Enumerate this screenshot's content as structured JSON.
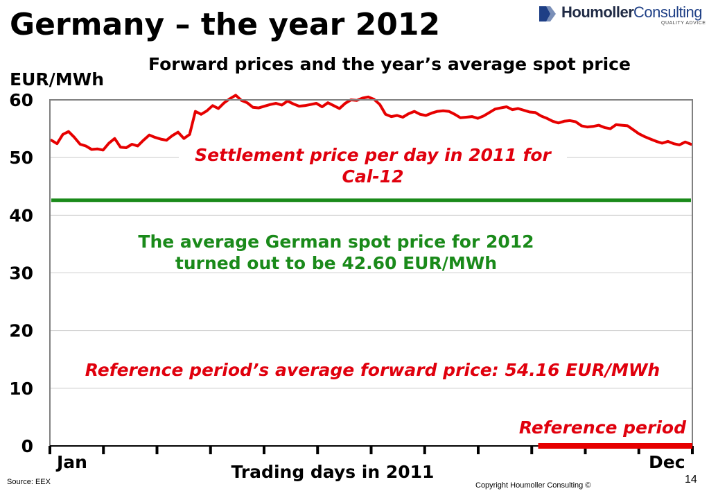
{
  "slide": {
    "title": "Germany – the year 2012",
    "number": "14",
    "source": "Source: EEX",
    "copyright": "Copyright Houmoller Consulting ©"
  },
  "logo": {
    "word1": "Houmoller",
    "word2": "Consulting",
    "tagline": "QUALITY ADVICE"
  },
  "annotations": {
    "settlement": "Settlement price per day in 2011 for Cal-12",
    "spot": "The average German spot price for 2012 turned out to be 42.60 EUR/MWh",
    "reference_avg": "Reference period’s average forward price:  54.16 EUR/MWh",
    "reference_period": "Reference period"
  },
  "colors": {
    "forward_line": "#e60000",
    "spot_line": "#1a8a1a",
    "reference_bar": "#e60000",
    "grid": "#cccccc",
    "plot_border": "#808080"
  },
  "chart_data": {
    "type": "line",
    "title": "Forward prices and the year’s average spot price",
    "ylabel": "EUR/MWh",
    "xlabel": "Trading days in 2011",
    "x_start_label": "Jan",
    "x_end_label": "Dec",
    "ylim": [
      0,
      60
    ],
    "yticks": [
      0,
      10,
      20,
      30,
      40,
      50,
      60
    ],
    "grid": true,
    "x_month_ticks": 12,
    "series": [
      {
        "name": "Settlement price per day in 2011 for Cal-12",
        "values": [
          53.0,
          52.4,
          54.0,
          54.5,
          53.5,
          52.3,
          52.0,
          51.4,
          51.5,
          51.3,
          52.5,
          53.3,
          51.8,
          51.7,
          52.3,
          52.0,
          53.0,
          53.9,
          53.5,
          53.2,
          53.0,
          53.8,
          54.4,
          53.3,
          54.0,
          58.0,
          57.5,
          58.1,
          59.0,
          58.5,
          59.5,
          60.2,
          60.8,
          59.9,
          59.5,
          58.7,
          58.6,
          58.9,
          59.2,
          59.4,
          59.1,
          59.8,
          59.3,
          58.9,
          59.0,
          59.2,
          59.4,
          58.8,
          59.5,
          59.0,
          58.5,
          59.4,
          60.0,
          59.9,
          60.3,
          60.5,
          60.1,
          59.2,
          57.5,
          57.1,
          57.3,
          57.0,
          57.6,
          58.0,
          57.5,
          57.3,
          57.7,
          58.0,
          58.1,
          58.0,
          57.5,
          56.9,
          57.0,
          57.1,
          56.8,
          57.2,
          57.8,
          58.4,
          58.6,
          58.8,
          58.3,
          58.5,
          58.2,
          57.9,
          57.8,
          57.2,
          56.8,
          56.3,
          56.0,
          56.3,
          56.4,
          56.2,
          55.5,
          55.3,
          55.4,
          55.6,
          55.2,
          55.0,
          55.7,
          55.6,
          55.5,
          54.8,
          54.1,
          53.6,
          53.2,
          52.8,
          52.5,
          52.8,
          52.4,
          52.2,
          52.7,
          52.3
        ]
      },
      {
        "name": "The average German spot price for 2012",
        "values": [
          42.6,
          42.6
        ]
      }
    ],
    "reference_period": {
      "label": "Reference period",
      "start_fraction": 0.76,
      "end_fraction": 1.0,
      "average_forward_price": 54.16
    },
    "annotations": [
      "Settlement price per day in 2011 for Cal-12",
      "The average German spot price for 2012 turned out to be 42.60 EUR/MWh",
      "Reference period’s average forward price:  54.16 EUR/MWh",
      "Reference period"
    ]
  }
}
